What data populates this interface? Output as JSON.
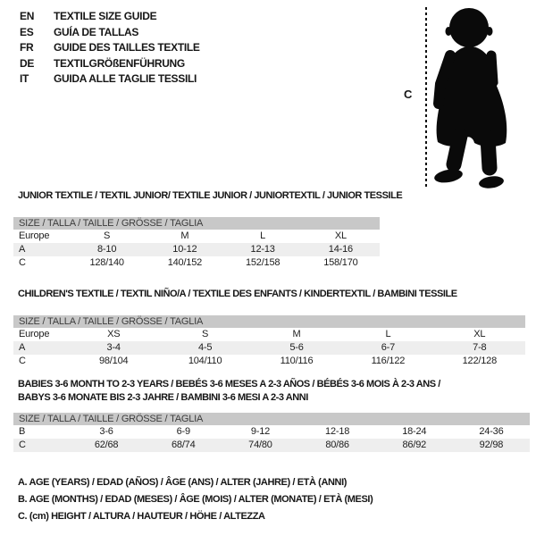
{
  "header": {
    "languages": [
      {
        "code": "EN",
        "title": "TEXTILE SIZE GUIDE"
      },
      {
        "code": "ES",
        "title": "GUÍA DE TALLAS"
      },
      {
        "code": "FR",
        "title": "GUIDE DES TAILLES TEXTILE"
      },
      {
        "code": "DE",
        "title": "TEXTILGRÖßENFÜHRUNG"
      },
      {
        "code": "IT",
        "title": "GUIDA ALLE TAGLIE TESSILI"
      }
    ]
  },
  "figure": {
    "height_label": "C",
    "silhouette": "baby-toddler-silhouette"
  },
  "colors": {
    "bar_bg": "#c8c8c8",
    "shaded_row": "#eeeeee",
    "text": "#161616"
  },
  "tables": [
    {
      "title": "JUNIOR TEXTILE / TEXTIL JUNIOR/ TEXTILE JUNIOR / JUNIORTEXTIL / JUNIOR TESSILE",
      "size_header": "SIZE / TALLA / TAILLE / GRÖSSE / TAGLIA",
      "rows": [
        {
          "label": "Europe",
          "cells": [
            "S",
            "M",
            "L",
            "XL"
          ]
        },
        {
          "label": "A",
          "cells": [
            "8-10",
            "10-12",
            "12-13",
            "14-16"
          ]
        },
        {
          "label": "C",
          "cells": [
            "128/140",
            "140/152",
            "152/158",
            "158/170"
          ]
        }
      ]
    },
    {
      "title": "CHILDREN'S TEXTILE / TEXTIL NIÑO/A / TEXTILE DES ENFANTS / KINDERTEXTIL / BAMBINI TESSILE",
      "size_header": "SIZE / TALLA / TAILLE / GRÖSSE / TAGLIA",
      "rows": [
        {
          "label": "Europe",
          "cells": [
            "XS",
            "S",
            "M",
            "L",
            "XL"
          ]
        },
        {
          "label": "A",
          "cells": [
            "3-4",
            "4-5",
            "5-6",
            "6-7",
            "7-8"
          ]
        },
        {
          "label": "C",
          "cells": [
            "98/104",
            "104/110",
            "110/116",
            "116/122",
            "122/128"
          ]
        }
      ]
    },
    {
      "title": "BABIES 3-6 MONTH TO 2-3 YEARS / BEBÉS 3-6 MESES A 2-3 AÑOS / BÉBÉS 3-6 MOIS À 2-3 ANS /\nBABYS 3-6 MONATE BIS 2-3 JAHRE / BAMBINI 3-6 MESI A 2-3 ANNI",
      "size_header": "SIZE / TALLA / TAILLE / GRÖSSE / TAGLIA",
      "rows": [
        {
          "label": "B",
          "cells": [
            "3-6",
            "6-9",
            "9-12",
            "12-18",
            "18-24",
            "24-36"
          ]
        },
        {
          "label": "C",
          "cells": [
            "62/68",
            "68/74",
            "74/80",
            "80/86",
            "86/92",
            "92/98"
          ]
        }
      ]
    }
  ],
  "footnotes": [
    "A. AGE (YEARS) / EDAD (AÑOS) / ÂGE (ANS) / ALTER (JAHRE) / ETÀ (ANNI)",
    "B. AGE (MONTHS) / EDAD (MESES) / ÂGE (MOIS) / ALTER (MONATE) / ETÀ (MESI)",
    "C. (cm) HEIGHT / ALTURA / HAUTEUR / HÖHE / ALTEZZA"
  ]
}
